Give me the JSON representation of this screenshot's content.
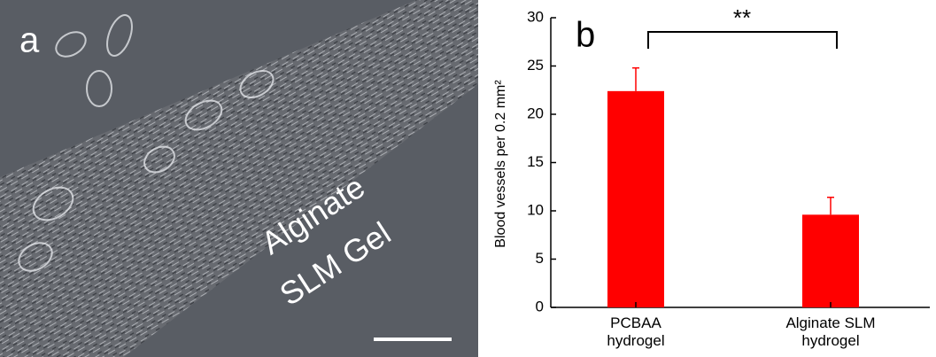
{
  "image_panel": {
    "label": "a",
    "annotation": [
      "Alginate",
      "SLM Gel"
    ]
  },
  "chart_data": {
    "type": "bar",
    "panel_label": "b",
    "y_label": "Blood vessels per 0.2 mm²",
    "categories": [
      "PCBAA hydrogel",
      "Alginate SLM hydrogel"
    ],
    "series": [
      {
        "color": "#ff0000",
        "values": [
          22.4,
          9.6
        ],
        "errors": [
          2.4,
          1.8
        ]
      }
    ],
    "ylim": [
      0,
      30
    ],
    "yticks": [
      0,
      5,
      10,
      15,
      20,
      25,
      30
    ],
    "annotation": "**"
  }
}
